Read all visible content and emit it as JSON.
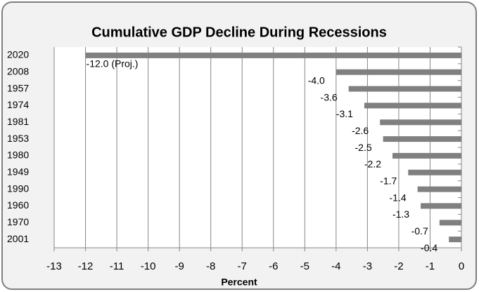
{
  "chart_data": {
    "type": "bar",
    "orientation": "horizontal",
    "title": "Cumulative GDP Decline During Recessions",
    "categories": [
      "2020",
      "2008",
      "1957",
      "1974",
      "1981",
      "1953",
      "1980",
      "1949",
      "1990",
      "1960",
      "1970",
      "2001"
    ],
    "values": [
      -12.0,
      -4.0,
      -3.6,
      -3.1,
      -2.6,
      -2.5,
      -2.2,
      -1.7,
      -1.4,
      -1.3,
      -0.7,
      -0.4
    ],
    "value_labels": [
      "-12.0 (Proj.)",
      "-4.0",
      "-3.6",
      "-3.1",
      "-2.6",
      "-2.5",
      "-2.2",
      "-1.7",
      "-1.4",
      "-1.3",
      "-0.7",
      "-0.4"
    ],
    "color": "#808080",
    "xlabel": "Percent",
    "xlim": [
      -13,
      0
    ],
    "xticks": [
      -13,
      -12,
      -11,
      -10,
      -9,
      -8,
      -7,
      -6,
      -5,
      -4,
      -3,
      -2,
      -1,
      0
    ],
    "grid": true
  }
}
